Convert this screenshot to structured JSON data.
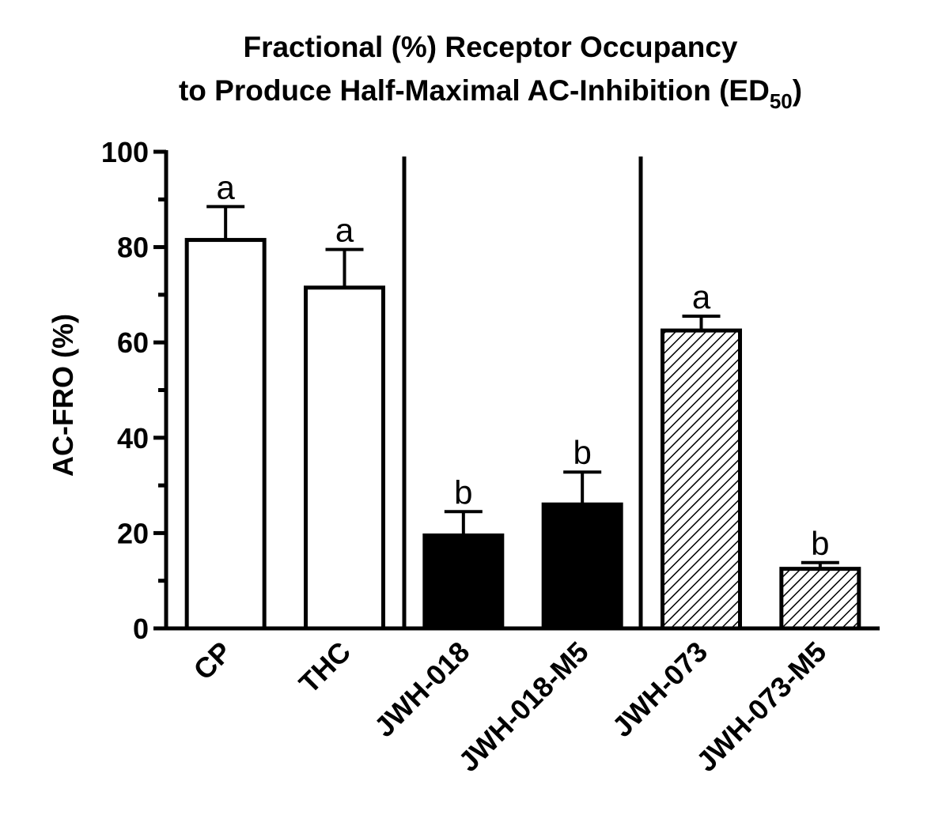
{
  "chart_data": {
    "type": "bar",
    "title": {
      "line1": "Fractional (%) Receptor Occupancy",
      "line2": "to Produce Half-Maximal AC-Inhibition (ED",
      "subscript": "50",
      "line2_end": ")"
    },
    "y_label": "AC-FRO (%)",
    "categories": [
      "CP",
      "THC",
      "JWH-018",
      "JWH-018-M5",
      "JWH-073",
      "JWH-073-M5"
    ],
    "values": [
      81.5,
      71.5,
      19.5,
      26,
      62.5,
      12.5
    ],
    "errors": [
      7,
      8,
      5,
      6.8,
      3,
      1.3
    ],
    "significance_labels": [
      "a",
      "a",
      "b",
      "b",
      "a",
      "b"
    ],
    "colors": [
      "#ffffff",
      "#ffffff",
      "#000000",
      "#000000",
      "#ffffff",
      "#ffffff"
    ],
    "patterns": [
      "none",
      "none",
      "none",
      "none",
      "hatch",
      "hatch"
    ],
    "ylim": [
      0,
      100
    ],
    "yticks": [
      0,
      20,
      40,
      60,
      80,
      100
    ],
    "yminor_ticks": [
      10,
      30,
      50,
      70,
      90
    ]
  }
}
